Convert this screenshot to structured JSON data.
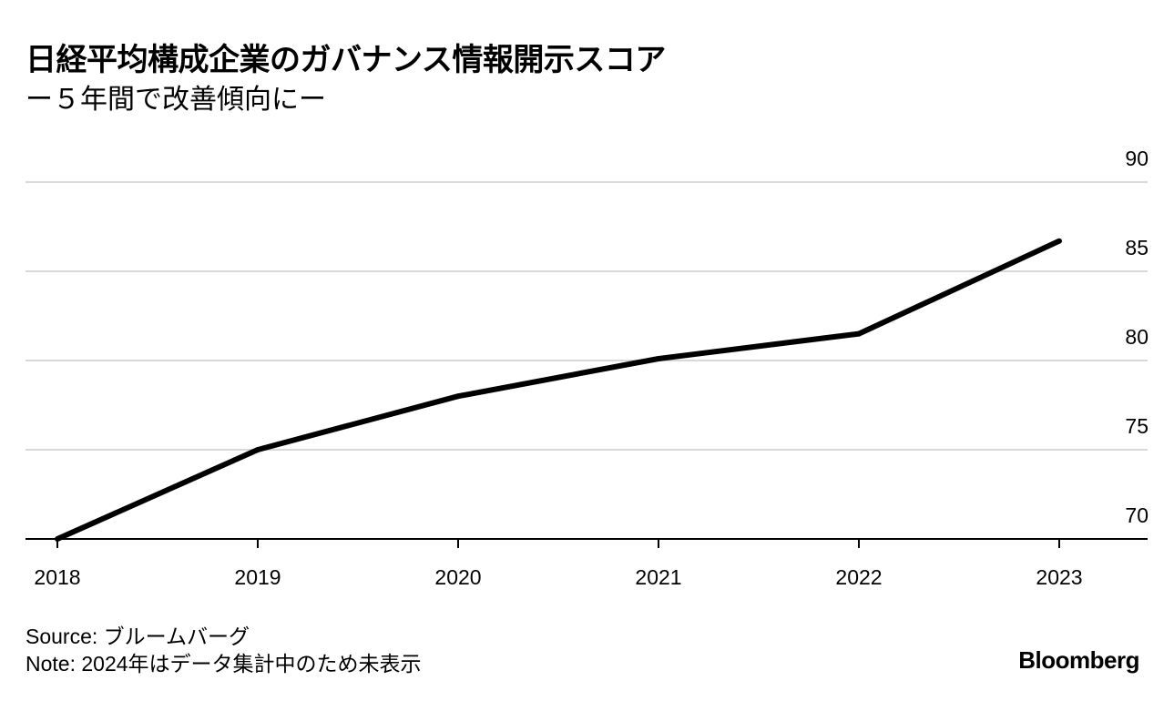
{
  "header": {
    "title": "日経平均構成企業のガバナンス情報開示スコア",
    "subtitle": "ー５年間で改善傾向にー"
  },
  "footer": {
    "source": "Source: ブルームバーグ",
    "note": "Note: 2024年はデータ集計中のため未表示",
    "brand": "Bloomberg"
  },
  "chart_data": {
    "type": "line",
    "title": "日経平均構成企業のガバナンス情報開示スコア",
    "subtitle": "ー５年間で改善傾向にー",
    "x": [
      "2018",
      "2019",
      "2020",
      "2021",
      "2022",
      "2023"
    ],
    "series": [
      {
        "values": [
          70.0,
          75.0,
          78.0,
          80.1,
          81.5,
          86.7
        ],
        "color": "#000000"
      }
    ],
    "ylim": [
      70,
      90
    ],
    "yticks": [
      70,
      75,
      80,
      85,
      90
    ],
    "grid": true,
    "y_axis_position": "right",
    "legend": "none"
  }
}
